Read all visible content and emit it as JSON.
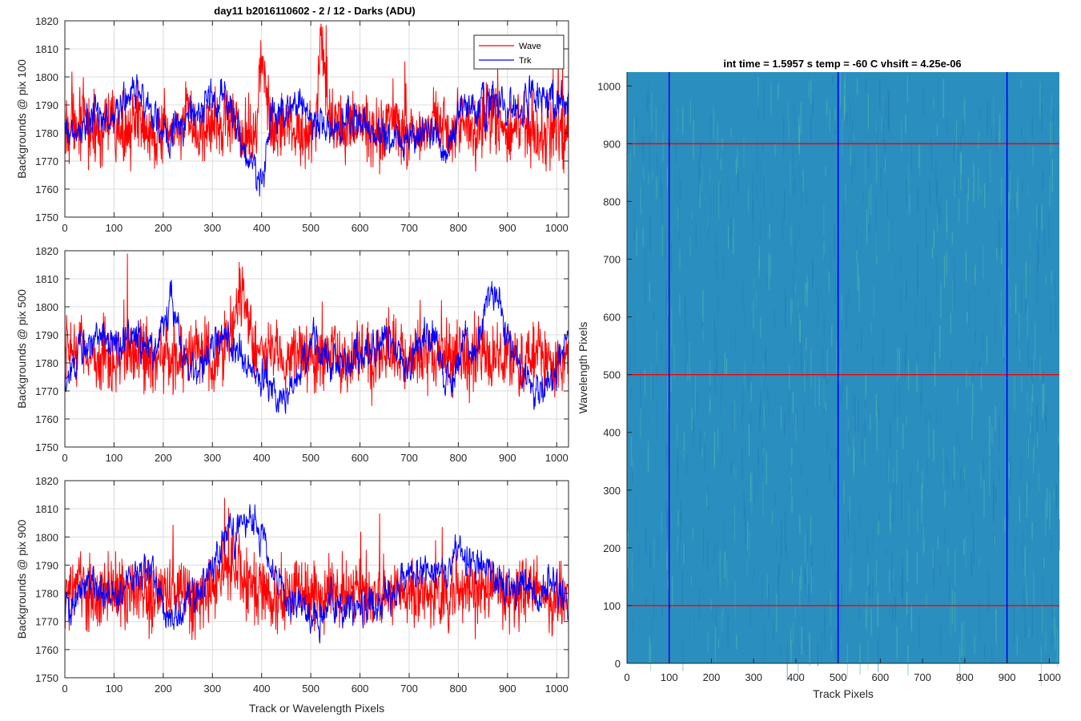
{
  "figure": {
    "title": "day11 b2016110602 - 2 / 12 - Darks (ADU)",
    "heatmap_title": "int time = 1.5957 s    temp = -60 C    vhsift = 4.25e-06"
  },
  "colors": {
    "wave": "#ff0000",
    "trk": "#0000ff",
    "grid": "#dcdcdc",
    "heatmap_base": "#2a8fbf",
    "axis": "#262626"
  },
  "chart_data": [
    {
      "type": "line",
      "id": "pix100",
      "title": "day11 b2016110602 - 2 / 12 - Darks (ADU)",
      "xlabel": "",
      "ylabel": "Backgrounds @ pix 100",
      "xlim": [
        0,
        1024
      ],
      "ylim": [
        1750,
        1820
      ],
      "xticks": [
        "0",
        "100",
        "200",
        "300",
        "400",
        "500",
        "600",
        "700",
        "800",
        "900",
        "1000"
      ],
      "yticks": [
        "1750",
        "1760",
        "1770",
        "1780",
        "1790",
        "1800",
        "1810",
        "1820"
      ],
      "grid": true,
      "legend": {
        "position": "top-right",
        "entries": [
          "Wave",
          "Trk"
        ]
      },
      "series": [
        {
          "name": "Wave",
          "color": "#ff0000",
          "x": [
            0,
            30,
            60,
            90,
            120,
            150,
            180,
            210,
            240,
            270,
            300,
            330,
            360,
            390,
            400,
            420,
            450,
            480,
            510,
            520,
            540,
            570,
            600,
            630,
            660,
            690,
            720,
            750,
            780,
            810,
            840,
            870,
            900,
            930,
            960,
            990,
            1024
          ],
          "values": [
            1781,
            1786,
            1779,
            1783,
            1780,
            1785,
            1781,
            1779,
            1784,
            1780,
            1782,
            1786,
            1779,
            1783,
            1809,
            1780,
            1785,
            1779,
            1781,
            1813,
            1783,
            1780,
            1784,
            1779,
            1785,
            1781,
            1780,
            1784,
            1779,
            1783,
            1781,
            1785,
            1779,
            1784,
            1780,
            1782,
            1781
          ]
        },
        {
          "name": "Trk",
          "color": "#0000ff",
          "x": [
            0,
            30,
            60,
            90,
            120,
            150,
            180,
            210,
            240,
            270,
            300,
            330,
            360,
            390,
            400,
            420,
            450,
            480,
            510,
            540,
            570,
            600,
            630,
            660,
            690,
            720,
            750,
            780,
            810,
            840,
            870,
            900,
            930,
            960,
            990,
            1024
          ],
          "values": [
            1778,
            1780,
            1786,
            1784,
            1791,
            1795,
            1787,
            1779,
            1784,
            1788,
            1792,
            1793,
            1775,
            1764,
            1762,
            1784,
            1789,
            1791,
            1784,
            1780,
            1786,
            1783,
            1781,
            1778,
            1780,
            1779,
            1782,
            1775,
            1790,
            1788,
            1792,
            1787,
            1790,
            1795,
            1791,
            1790
          ]
        }
      ]
    },
    {
      "type": "line",
      "id": "pix500",
      "xlabel": "",
      "ylabel": "Backgrounds @ pix 500",
      "xlim": [
        0,
        1024
      ],
      "ylim": [
        1750,
        1820
      ],
      "xticks": [
        "0",
        "100",
        "200",
        "300",
        "400",
        "500",
        "600",
        "700",
        "800",
        "900",
        "1000"
      ],
      "yticks": [
        "1750",
        "1760",
        "1770",
        "1780",
        "1790",
        "1800",
        "1810",
        "1820"
      ],
      "grid": true,
      "series": [
        {
          "name": "Wave",
          "color": "#ff0000",
          "x": [
            0,
            30,
            60,
            90,
            120,
            150,
            180,
            210,
            240,
            270,
            300,
            330,
            360,
            390,
            420,
            450,
            480,
            510,
            540,
            570,
            600,
            630,
            660,
            690,
            720,
            750,
            780,
            810,
            840,
            870,
            900,
            930,
            960,
            990,
            1024
          ],
          "values": [
            1783,
            1787,
            1780,
            1784,
            1781,
            1786,
            1779,
            1783,
            1781,
            1786,
            1780,
            1784,
            1806,
            1781,
            1785,
            1779,
            1783,
            1781,
            1786,
            1780,
            1784,
            1781,
            1785,
            1779,
            1783,
            1781,
            1785,
            1780,
            1784,
            1781,
            1786,
            1779,
            1783,
            1781,
            1780
          ]
        },
        {
          "name": "Trk",
          "color": "#0000ff",
          "x": [
            0,
            30,
            60,
            90,
            120,
            150,
            180,
            200,
            215,
            240,
            270,
            300,
            330,
            360,
            390,
            420,
            440,
            480,
            510,
            540,
            570,
            600,
            630,
            660,
            690,
            720,
            750,
            780,
            810,
            840,
            860,
            875,
            900,
            930,
            960,
            990,
            1024
          ],
          "values": [
            1776,
            1782,
            1788,
            1790,
            1786,
            1790,
            1782,
            1796,
            1802,
            1784,
            1775,
            1786,
            1790,
            1781,
            1778,
            1770,
            1765,
            1779,
            1788,
            1781,
            1778,
            1783,
            1786,
            1790,
            1781,
            1786,
            1790,
            1772,
            1788,
            1785,
            1805,
            1808,
            1786,
            1775,
            1768,
            1772,
            1790
          ]
        }
      ]
    },
    {
      "type": "line",
      "id": "pix900",
      "xlabel": "Track or Wavelength Pixels",
      "ylabel": "Backgrounds @ pix 900",
      "xlim": [
        0,
        1024
      ],
      "ylim": [
        1750,
        1820
      ],
      "xticks": [
        "0",
        "100",
        "200",
        "300",
        "400",
        "500",
        "600",
        "700",
        "800",
        "900",
        "1000"
      ],
      "yticks": [
        "1750",
        "1760",
        "1770",
        "1780",
        "1790",
        "1800",
        "1810",
        "1820"
      ],
      "grid": true,
      "series": [
        {
          "name": "Wave",
          "color": "#ff0000",
          "x": [
            0,
            30,
            60,
            90,
            120,
            150,
            180,
            210,
            240,
            270,
            300,
            330,
            360,
            390,
            420,
            450,
            480,
            510,
            540,
            570,
            600,
            630,
            660,
            690,
            720,
            750,
            780,
            810,
            840,
            870,
            900,
            930,
            960,
            990,
            1024
          ],
          "values": [
            1779,
            1783,
            1777,
            1781,
            1779,
            1784,
            1778,
            1782,
            1780,
            1776,
            1783,
            1790,
            1787,
            1781,
            1777,
            1780,
            1782,
            1778,
            1781,
            1779,
            1783,
            1777,
            1781,
            1778,
            1782,
            1780,
            1778,
            1782,
            1779,
            1784,
            1778,
            1782,
            1780,
            1777,
            1781
          ]
        },
        {
          "name": "Trk",
          "color": "#0000ff",
          "x": [
            0,
            30,
            60,
            90,
            120,
            150,
            180,
            210,
            240,
            270,
            300,
            330,
            360,
            390,
            420,
            450,
            480,
            510,
            540,
            570,
            600,
            630,
            660,
            690,
            720,
            750,
            780,
            810,
            840,
            870,
            900,
            930,
            960,
            990,
            1024
          ],
          "values": [
            1774,
            1779,
            1784,
            1778,
            1782,
            1787,
            1790,
            1772,
            1774,
            1780,
            1790,
            1800,
            1803,
            1806,
            1790,
            1776,
            1774,
            1771,
            1776,
            1772,
            1778,
            1775,
            1780,
            1786,
            1790,
            1788,
            1789,
            1792,
            1790,
            1786,
            1780,
            1783,
            1779,
            1785,
            1776
          ]
        }
      ]
    },
    {
      "type": "heatmap",
      "id": "dark-frame",
      "title": "int time = 1.5957 s    temp = -60 C    vhsift = 4.25e-06",
      "xlabel": "Track Pixels",
      "ylabel": "Wavelength Pixels",
      "xlim": [
        0,
        1024
      ],
      "ylim": [
        0,
        1024
      ],
      "xticks": [
        "0",
        "100",
        "200",
        "300",
        "400",
        "500",
        "600",
        "700",
        "800",
        "900",
        "1000"
      ],
      "yticks": [
        "0",
        "100",
        "200",
        "300",
        "400",
        "500",
        "600",
        "700",
        "800",
        "900",
        "1000"
      ],
      "vertical_markers": [
        100,
        500,
        900
      ],
      "horizontal_markers": [
        100,
        500,
        900
      ],
      "vertical_marker_color": "#0000ff",
      "horizontal_marker_color": "#ff0000"
    }
  ]
}
